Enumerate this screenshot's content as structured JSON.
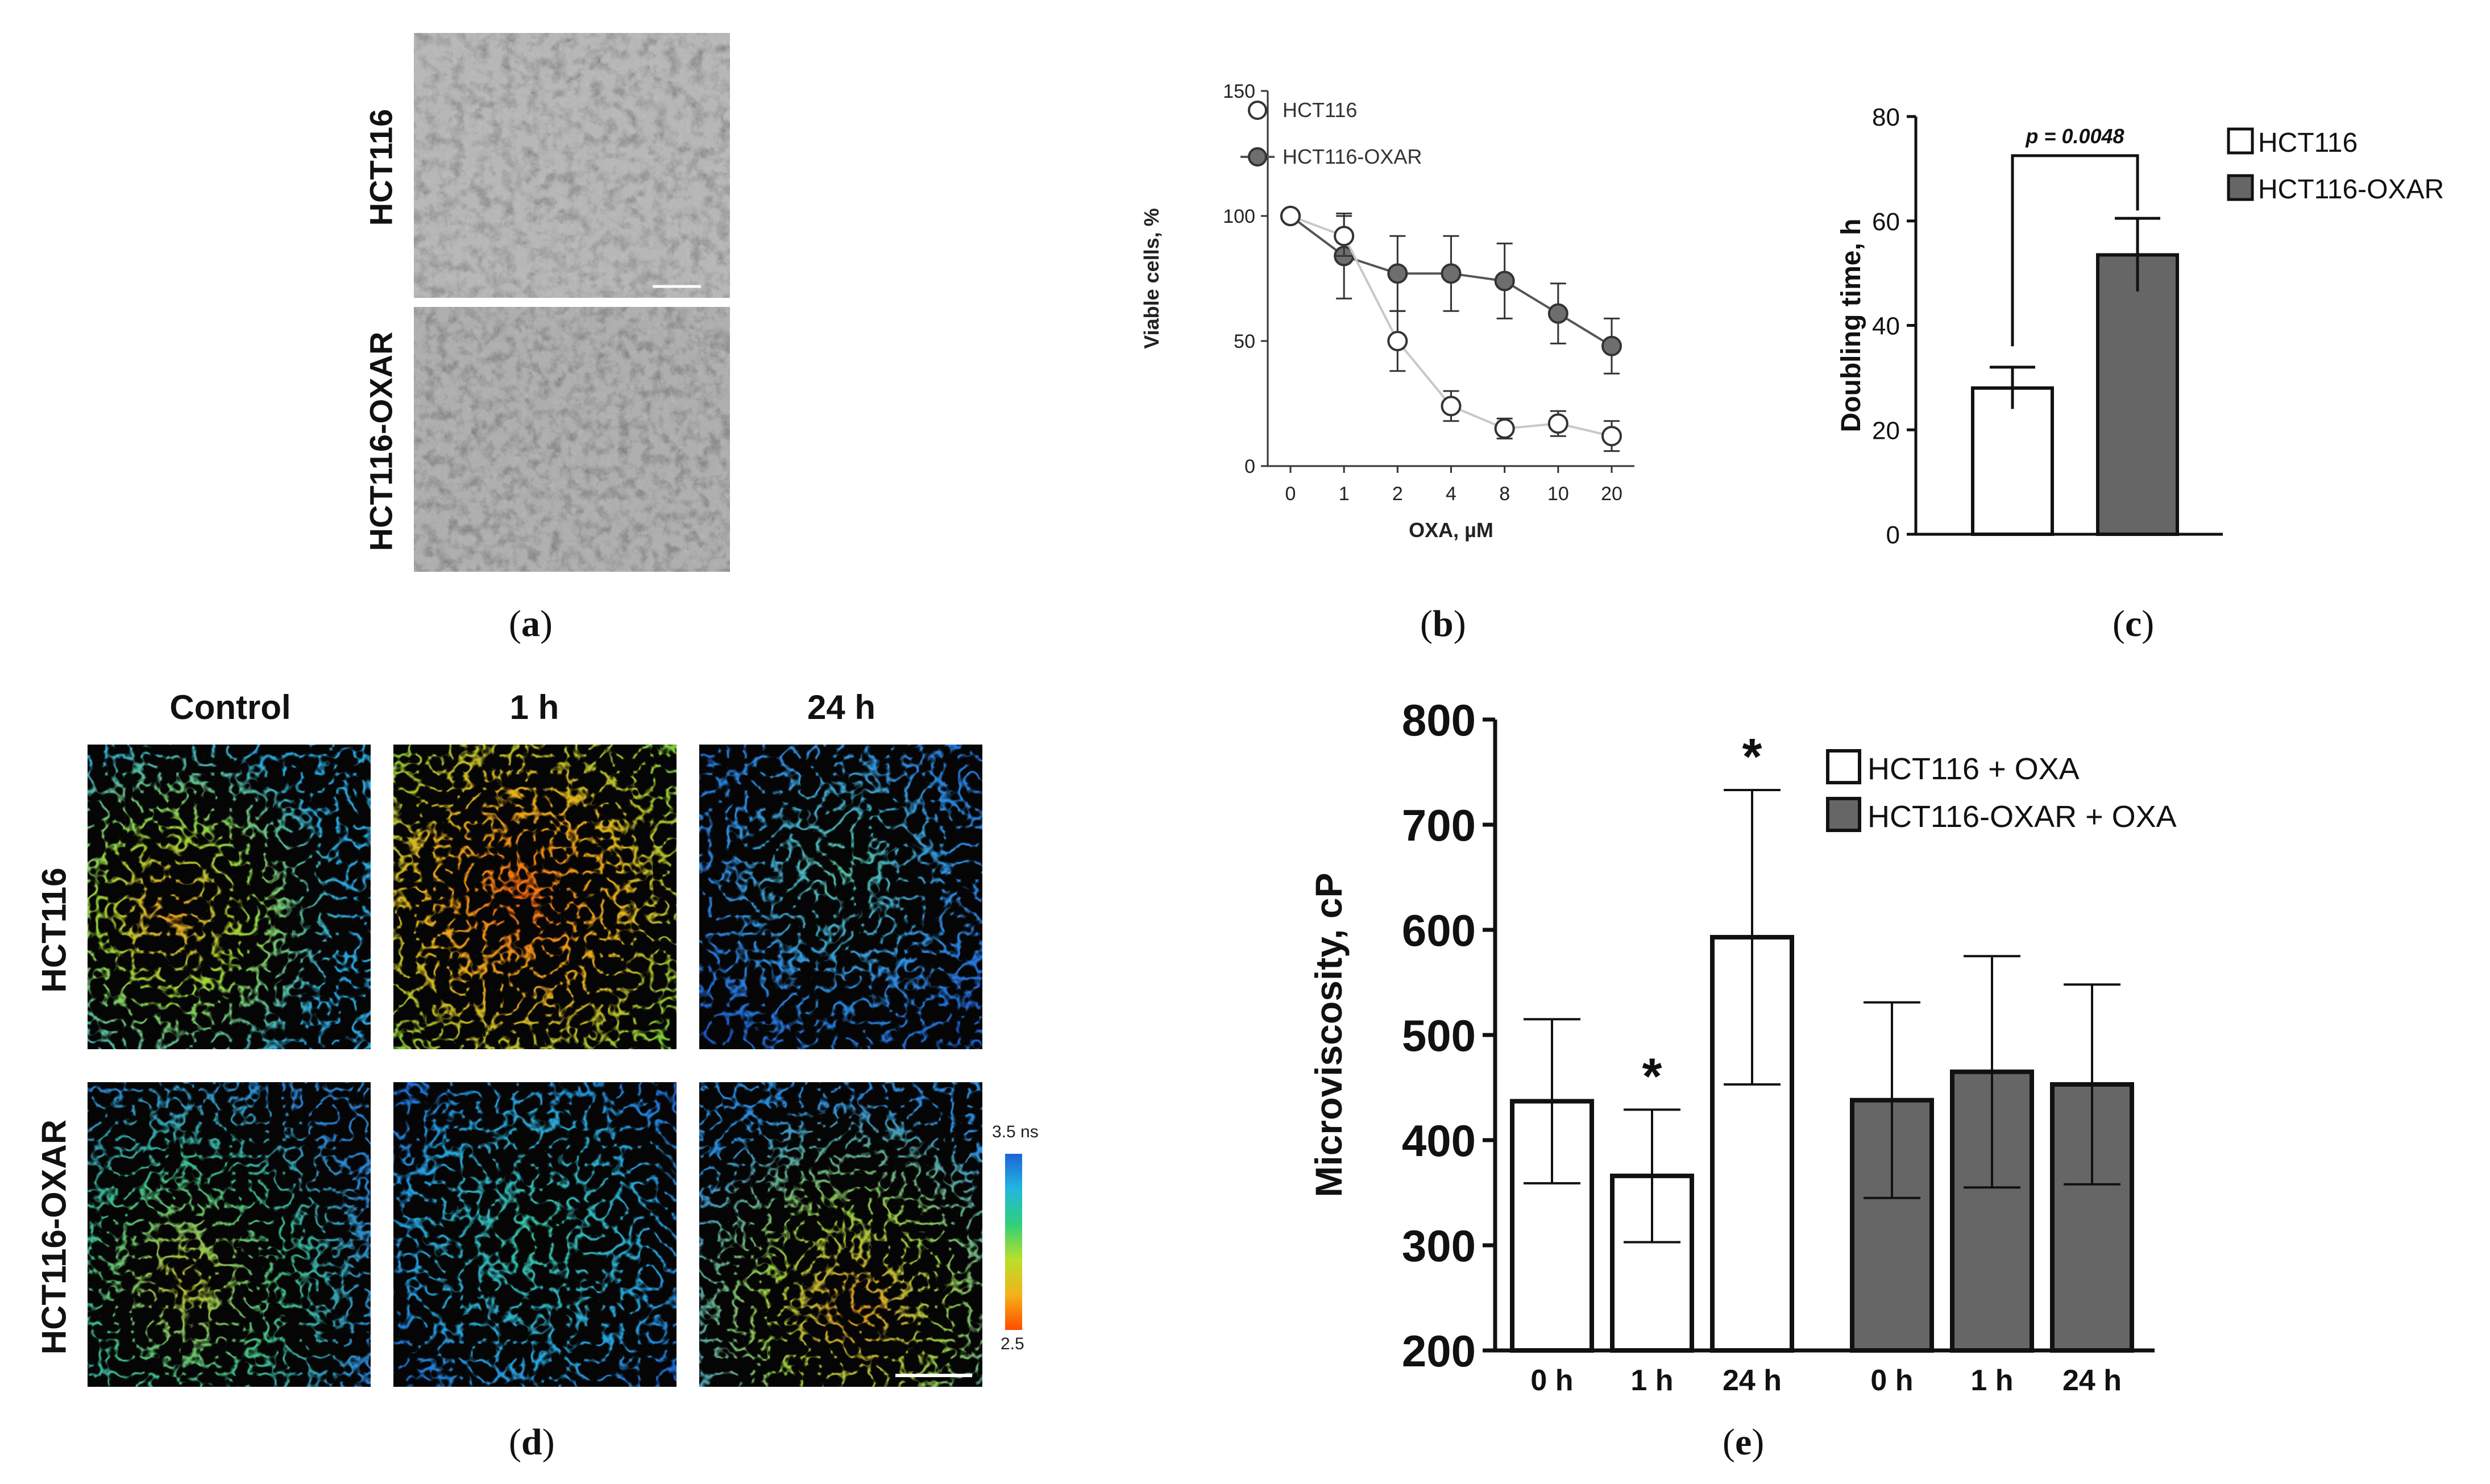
{
  "panel_labels": {
    "a": "a",
    "b": "b",
    "c": "c",
    "d": "d",
    "e": "e"
  },
  "panel_a": {
    "rows": [
      "HCT116",
      "HCT116-OXAR"
    ]
  },
  "panel_d": {
    "columns": [
      "Control",
      "1 h",
      "24 h"
    ],
    "rows": [
      "HCT116",
      "HCT116-OXAR"
    ],
    "colorbar": {
      "top_label": "3.5 ns",
      "bottom_label": "2.5",
      "colors": [
        "#1e63d8",
        "#22b7e0",
        "#2fd07a",
        "#b8e02a",
        "#f4b21a",
        "#ff4d00"
      ]
    }
  },
  "chart_data": [
    {
      "id": "b",
      "type": "line",
      "title": "",
      "xlabel": "OXA, µM",
      "ylabel": "Viable cells, %",
      "categories": [
        "0",
        "1",
        "2",
        "4",
        "8",
        "10",
        "20"
      ],
      "ylim": [
        0,
        150
      ],
      "yticks": [
        "0",
        "50",
        "100",
        "150"
      ],
      "series": [
        {
          "name": "HCT116",
          "values": [
            100,
            92,
            50,
            24,
            15,
            17,
            12
          ],
          "errors": [
            0,
            8,
            12,
            6,
            4,
            5,
            6
          ],
          "line_color": "#c8c8c8",
          "marker_fill": "#ffffff"
        },
        {
          "name": "HCT116-OXAR",
          "values": [
            100,
            84,
            77,
            77,
            74,
            61,
            48
          ],
          "errors": [
            0,
            17,
            15,
            15,
            15,
            12,
            11
          ],
          "line_color": "#555555",
          "marker_fill": "#6e6e6e"
        }
      ]
    },
    {
      "id": "c",
      "type": "bar",
      "title": "",
      "xlabel": "",
      "ylabel": "Doubling time, h",
      "categories": [
        "HCT116",
        "HCT116-OXAR"
      ],
      "values": [
        28,
        53.5
      ],
      "errors": [
        4,
        7
      ],
      "colors": [
        "#ffffff",
        "#666666"
      ],
      "ylim": [
        0,
        80
      ],
      "yticks": [
        "0",
        "20",
        "40",
        "60",
        "80"
      ],
      "annotation": "p = 0.0048",
      "legend": [
        "HCT116",
        "HCT116-OXAR"
      ]
    },
    {
      "id": "e",
      "type": "bar",
      "title": "",
      "xlabel": "",
      "ylabel": "Microviscosity, cP",
      "categories": [
        "0 h",
        "1 h",
        "24 h",
        "0 h",
        "1 h",
        "24 h"
      ],
      "groups": [
        "HCT116 + OXA",
        "HCT116 + OXA",
        "HCT116 + OXA",
        "HCT116-OXAR + OXA",
        "HCT116-OXAR + OXA",
        "HCT116-OXAR + OXA"
      ],
      "values": [
        437,
        366,
        593,
        438,
        465,
        453
      ],
      "errors": [
        78,
        63,
        140,
        93,
        110,
        95
      ],
      "significance": [
        "",
        "*",
        "*",
        "",
        "",
        ""
      ],
      "colors": [
        "#ffffff",
        "#666666"
      ],
      "ylim": [
        200,
        800
      ],
      "yticks": [
        "200",
        "300",
        "400",
        "500",
        "600",
        "700",
        "800"
      ],
      "legend": [
        "HCT116 + OXA",
        "HCT116-OXAR + OXA"
      ]
    }
  ]
}
